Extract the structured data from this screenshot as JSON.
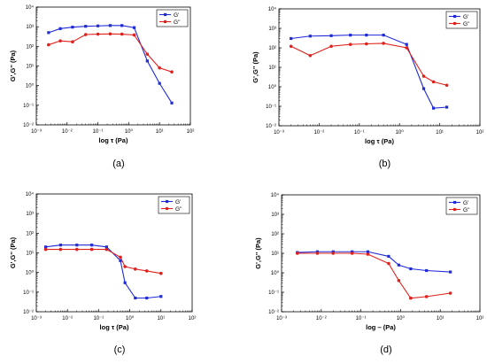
{
  "chart_data": [
    {
      "type": "line",
      "panel_label": "(a)",
      "xlabel": "log τ (Pa)",
      "ylabel": "G',G'' (Pa)",
      "xscale": "log",
      "yscale": "log",
      "xlim": [
        0.001,
        100
      ],
      "ylim": [
        0.01,
        10000
      ],
      "xticks": [
        "10⁻³",
        "10⁻²",
        "10⁻¹",
        "10⁰",
        "10¹",
        "10²"
      ],
      "yticks": [
        "10⁻²",
        "10⁻¹",
        "10⁰",
        "10¹",
        "10²",
        "10³",
        "10⁴"
      ],
      "legend_position": "top-right",
      "series": [
        {
          "name": "G'",
          "color": "#1f2bd6",
          "marker": "square",
          "x": [
            0.0025,
            0.006,
            0.015,
            0.04,
            0.1,
            0.25,
            0.6,
            1.5,
            4,
            10,
            25
          ],
          "y": [
            500,
            800,
            950,
            1050,
            1100,
            1150,
            1150,
            900,
            18,
            1.3,
            0.13
          ]
        },
        {
          "name": "G''",
          "color": "#e0201b",
          "marker": "circle",
          "x": [
            0.0025,
            0.006,
            0.015,
            0.04,
            0.1,
            0.25,
            0.6,
            1.5,
            4,
            10,
            25
          ],
          "y": [
            120,
            190,
            170,
            400,
            420,
            430,
            420,
            380,
            40,
            8,
            5
          ]
        }
      ]
    },
    {
      "type": "line",
      "panel_label": "(b)",
      "xlabel": "log τ (Pa)",
      "ylabel": "G',G'' (Pa)",
      "xscale": "log",
      "yscale": "log",
      "xlim": [
        0.001,
        100
      ],
      "ylim": [
        0.01,
        10000
      ],
      "xticks": [
        "10⁻³",
        "10⁻²",
        "10⁻¹",
        "10⁰",
        "10¹",
        "10²"
      ],
      "yticks": [
        "10⁻²",
        "10⁻¹",
        "10⁰",
        "10¹",
        "10²",
        "10³",
        "10⁴"
      ],
      "legend_position": "top-right",
      "series": [
        {
          "name": "G'",
          "color": "#1f2bd6",
          "marker": "square",
          "x": [
            0.002,
            0.006,
            0.02,
            0.06,
            0.15,
            0.4,
            1.5,
            4,
            7,
            15
          ],
          "y": [
            300,
            400,
            420,
            450,
            450,
            450,
            150,
            0.8,
            0.08,
            0.09
          ]
        },
        {
          "name": "G''",
          "color": "#e0201b",
          "marker": "circle",
          "x": [
            0.002,
            0.006,
            0.02,
            0.06,
            0.15,
            0.4,
            1.5,
            4,
            7,
            15
          ],
          "y": [
            120,
            40,
            120,
            150,
            160,
            170,
            100,
            3.5,
            1.8,
            1.2
          ]
        }
      ]
    },
    {
      "type": "line",
      "panel_label": "(c)",
      "xlabel": "log τ (Pa)",
      "ylabel": "G',G'' (Pa)",
      "xscale": "log",
      "yscale": "log",
      "xlim": [
        0.001,
        100
      ],
      "ylim": [
        0.01,
        10000
      ],
      "xticks": [
        "10⁻³",
        "10⁻²",
        "10⁻¹",
        "10⁰",
        "10¹",
        "10²"
      ],
      "yticks": [
        "10⁻²",
        "10⁻¹",
        "10⁰",
        "10¹",
        "10²",
        "10³",
        "10⁴"
      ],
      "legend_position": "top-right",
      "series": [
        {
          "name": "G'",
          "color": "#1f2bd6",
          "marker": "square",
          "x": [
            0.002,
            0.006,
            0.02,
            0.06,
            0.18,
            0.5,
            0.7,
            1.5,
            3.5,
            10
          ],
          "y": [
            20,
            25,
            25,
            25,
            20,
            4,
            0.3,
            0.05,
            0.05,
            0.06
          ]
        },
        {
          "name": "G''",
          "color": "#e0201b",
          "marker": "circle",
          "x": [
            0.002,
            0.006,
            0.02,
            0.06,
            0.18,
            0.5,
            0.7,
            1.5,
            3.5,
            10
          ],
          "y": [
            15,
            15,
            15,
            15,
            15,
            6,
            2,
            1.5,
            1.2,
            0.9
          ]
        }
      ]
    },
    {
      "type": "line",
      "panel_label": "(d)",
      "xlabel": "log ‒ (Pa)",
      "ylabel": "G',G'' (Pa)",
      "xscale": "log",
      "yscale": "log",
      "xlim": [
        0.001,
        100
      ],
      "ylim": [
        0.01,
        10000
      ],
      "xticks": [
        "10⁻³",
        "10⁻²",
        "10⁻¹",
        "10⁰",
        "10¹",
        "10²"
      ],
      "yticks": [
        "10⁻²",
        "10⁻¹",
        "10⁰",
        "10¹",
        "10²",
        "10³",
        "10⁴"
      ],
      "legend_position": "top-right",
      "series": [
        {
          "name": "G'",
          "color": "#1f2bd6",
          "marker": "square",
          "x": [
            0.0025,
            0.008,
            0.02,
            0.06,
            0.15,
            0.5,
            0.9,
            1.8,
            4.5,
            18
          ],
          "y": [
            11,
            12,
            12,
            12,
            12,
            7,
            2.5,
            1.6,
            1.3,
            1.1
          ]
        },
        {
          "name": "G''",
          "color": "#e0201b",
          "marker": "circle",
          "x": [
            0.0025,
            0.008,
            0.02,
            0.06,
            0.15,
            0.5,
            0.9,
            1.8,
            4.5,
            18
          ],
          "y": [
            10,
            10,
            10,
            10,
            9,
            3,
            0.4,
            0.05,
            0.06,
            0.09
          ]
        }
      ]
    }
  ]
}
